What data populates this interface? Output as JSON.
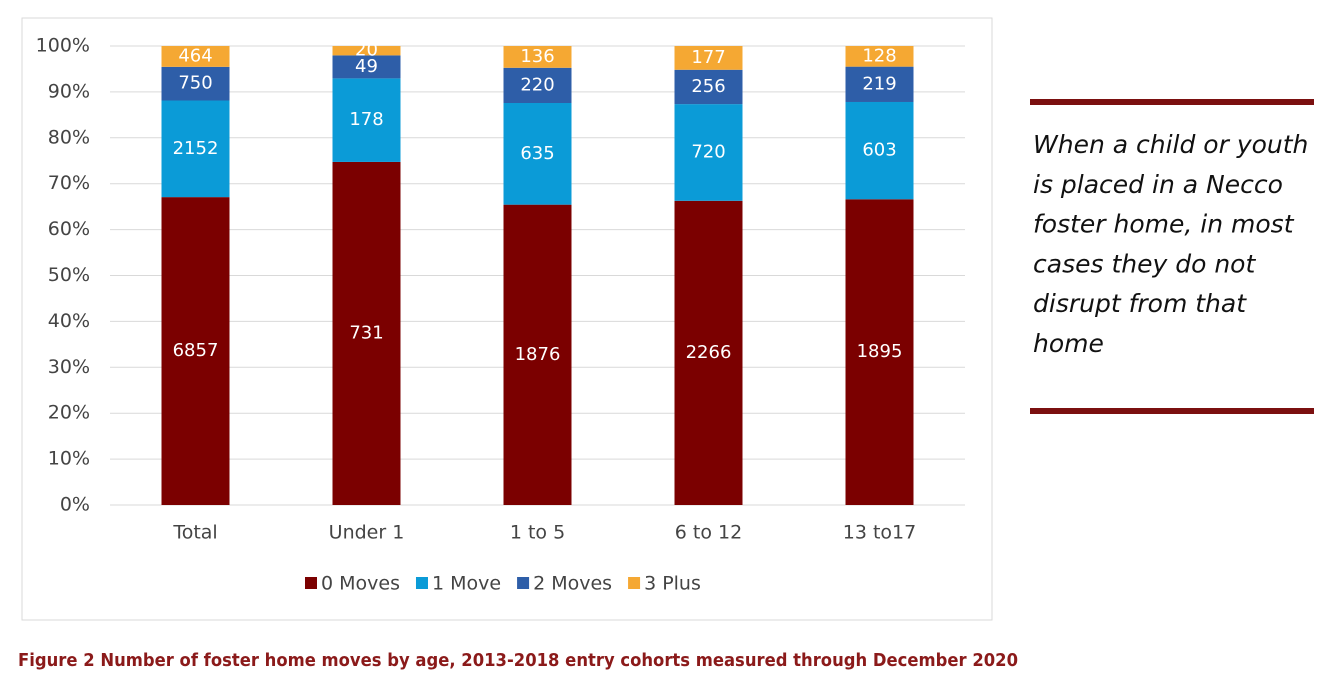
{
  "chart_data": {
    "type": "bar",
    "stacking": "percent",
    "categories": [
      "Total",
      "Under 1",
      "1 to 5",
      "6 to 12",
      "13 to17"
    ],
    "series": [
      {
        "name": "0 Moves",
        "color": "#7b0000",
        "values": [
          6857,
          731,
          1876,
          2266,
          1895
        ]
      },
      {
        "name": "1 Move",
        "color": "#0b9bd7",
        "values": [
          2152,
          178,
          635,
          720,
          603
        ]
      },
      {
        "name": "2 Moves",
        "color": "#2e5ea8",
        "values": [
          750,
          49,
          220,
          256,
          219
        ]
      },
      {
        "name": "3 Plus",
        "color": "#f5a833",
        "values": [
          464,
          20,
          136,
          177,
          128
        ]
      }
    ],
    "ylim": [
      0,
      100
    ],
    "yticks": [
      {
        "value": 0,
        "label": "0%"
      },
      {
        "value": 10,
        "label": "10%"
      },
      {
        "value": 20,
        "label": "20%"
      },
      {
        "value": 30,
        "label": "30%"
      },
      {
        "value": 40,
        "label": "40%"
      },
      {
        "value": 50,
        "label": "50%"
      },
      {
        "value": 60,
        "label": "60%"
      },
      {
        "value": 70,
        "label": "70%"
      },
      {
        "value": 80,
        "label": "80%"
      },
      {
        "value": 90,
        "label": "90%"
      },
      {
        "value": 100,
        "label": "100%"
      }
    ],
    "grid": true,
    "legend": "bottom"
  },
  "callout": {
    "lines": [
      "When a child or youth",
      "is placed in a Necco",
      "foster home, in most",
      "cases they do not",
      "disrupt from that",
      "home"
    ]
  },
  "caption": "Figure 2 Number of foster home moves by age, 2013-2018 entry cohorts measured through December 2020"
}
